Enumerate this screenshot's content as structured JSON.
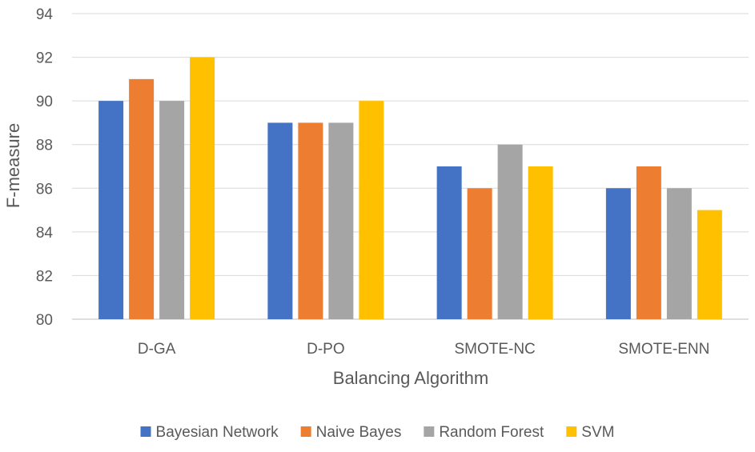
{
  "chart_data": {
    "type": "bar",
    "title": "",
    "xlabel": "Balancing Algorithm",
    "ylabel": "F-measure",
    "categories": [
      "D-GA",
      "D-PO",
      "SMOTE-NC",
      "SMOTE-ENN"
    ],
    "series": [
      {
        "name": "Bayesian Network",
        "color": "#4472C4",
        "values": [
          90,
          89,
          87,
          86
        ]
      },
      {
        "name": "Naive Bayes",
        "color": "#ED7D31",
        "values": [
          91,
          89,
          86,
          87
        ]
      },
      {
        "name": "Random Forest",
        "color": "#A5A5A5",
        "values": [
          90,
          89,
          88,
          86
        ]
      },
      {
        "name": "SVM",
        "color": "#FFC000",
        "values": [
          92,
          90,
          87,
          85
        ]
      }
    ],
    "ylim": [
      80,
      94
    ],
    "yticks": [
      "80",
      "82",
      "84",
      "86",
      "88",
      "90",
      "92",
      "94"
    ],
    "grid": true,
    "legend_position": "bottom"
  }
}
